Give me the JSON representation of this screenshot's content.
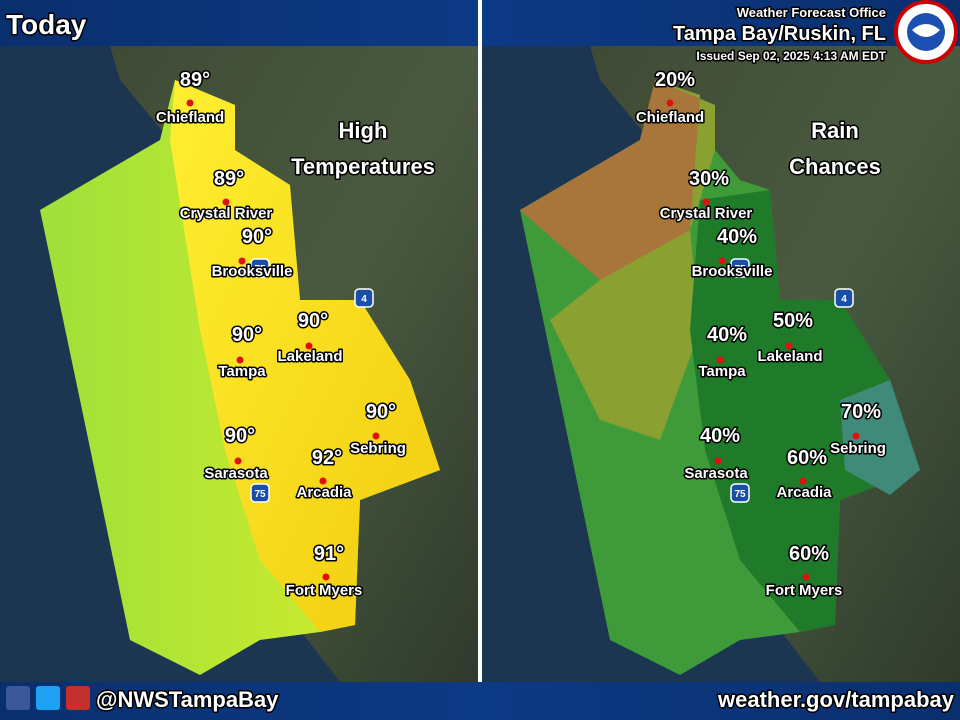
{
  "header": {
    "title": "Today",
    "office": "Weather Forecast Office",
    "location": "Tampa Bay/Ruskin, FL",
    "issued": "Issued Sep 02, 2025 4:13 AM EDT"
  },
  "panels": [
    {
      "title": [
        "High",
        "Temperatures"
      ]
    },
    {
      "title": [
        "Rain",
        "Chances"
      ]
    }
  ],
  "cities": [
    {
      "name": "Chiefland",
      "high": "89°",
      "rain": "20%"
    },
    {
      "name": "Crystal River",
      "high": "89°",
      "rain": "30%"
    },
    {
      "name": "Brooksville",
      "high": "90°",
      "rain": "40%"
    },
    {
      "name": "Tampa",
      "high": "90°",
      "rain": "40%"
    },
    {
      "name": "Lakeland",
      "high": "90°",
      "rain": "50%"
    },
    {
      "name": "Sebring",
      "high": "90°",
      "rain": "70%"
    },
    {
      "name": "Sarasota",
      "high": "90°",
      "rain": "40%"
    },
    {
      "name": "Arcadia",
      "high": "92°",
      "rain": "60%"
    },
    {
      "name": "Fort Myers",
      "high": "91°",
      "rain": "60%"
    }
  ],
  "interstates": [
    "75",
    "4"
  ],
  "footer": {
    "handle": "@NWSTampaBay",
    "url": "weather.gov/tampabay"
  }
}
